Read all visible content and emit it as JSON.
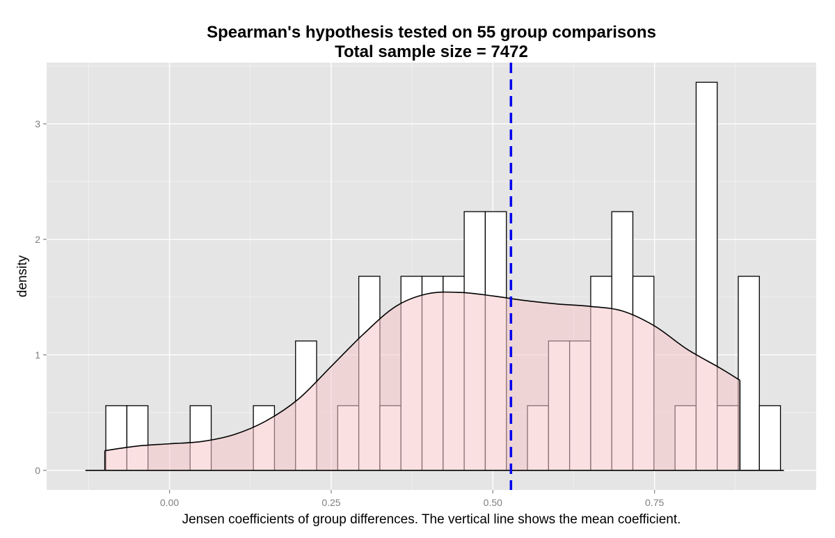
{
  "chart_data": {
    "type": "bar",
    "subtype": "histogram-with-density",
    "title": "Spearman's hypothesis tested on 55 group comparisons",
    "subtitle": "Total sample size = 7472",
    "xlabel": "Jensen coefficients of group differences. The vertical line shows the mean coefficient.",
    "ylabel": "density",
    "xlim": [
      -0.19,
      1.0
    ],
    "ylim": [
      -0.17,
      3.53
    ],
    "x_ticks": [
      0.0,
      0.25,
      0.5,
      0.75
    ],
    "x_tick_labels": [
      "0.00",
      "0.25",
      "0.50",
      "0.75"
    ],
    "y_ticks": [
      0,
      1,
      2,
      3
    ],
    "y_tick_labels": [
      "0",
      "1",
      "2",
      "3"
    ],
    "grid": true,
    "histogram": {
      "bin_width": 0.0326,
      "bin_start": -0.0985,
      "values": [
        0.56,
        0.56,
        0,
        0,
        0.56,
        0,
        0,
        0.56,
        0,
        1.12,
        0,
        0.56,
        1.68,
        0.56,
        1.68,
        1.68,
        1.68,
        2.24,
        2.24,
        0,
        0.56,
        1.12,
        1.12,
        1.68,
        2.24,
        1.68,
        0,
        0.56,
        3.36,
        0.56,
        1.68,
        0.56
      ]
    },
    "density": {
      "x": [
        -0.1,
        -0.05,
        0.0,
        0.05,
        0.1,
        0.15,
        0.2,
        0.25,
        0.3,
        0.35,
        0.4,
        0.45,
        0.5,
        0.55,
        0.6,
        0.65,
        0.7,
        0.75,
        0.8,
        0.85,
        0.882
      ],
      "y": [
        0.17,
        0.21,
        0.23,
        0.25,
        0.31,
        0.43,
        0.62,
        0.9,
        1.18,
        1.42,
        1.53,
        1.54,
        1.51,
        1.47,
        1.44,
        1.42,
        1.38,
        1.25,
        1.05,
        0.89,
        0.78
      ]
    },
    "density_baseline": [
      -0.13,
      0.95
    ],
    "mean_line": 0.528,
    "colors": {
      "panel_bg": "#e5e5e5",
      "grid": "#ffffff",
      "bar_fill": "#ffffff",
      "bar_stroke": "#000000",
      "density_fill": "#f7c6cb",
      "density_stroke": "#000000",
      "mean_line": "#0000ee",
      "tick_text": "#7f7f7f"
    }
  }
}
